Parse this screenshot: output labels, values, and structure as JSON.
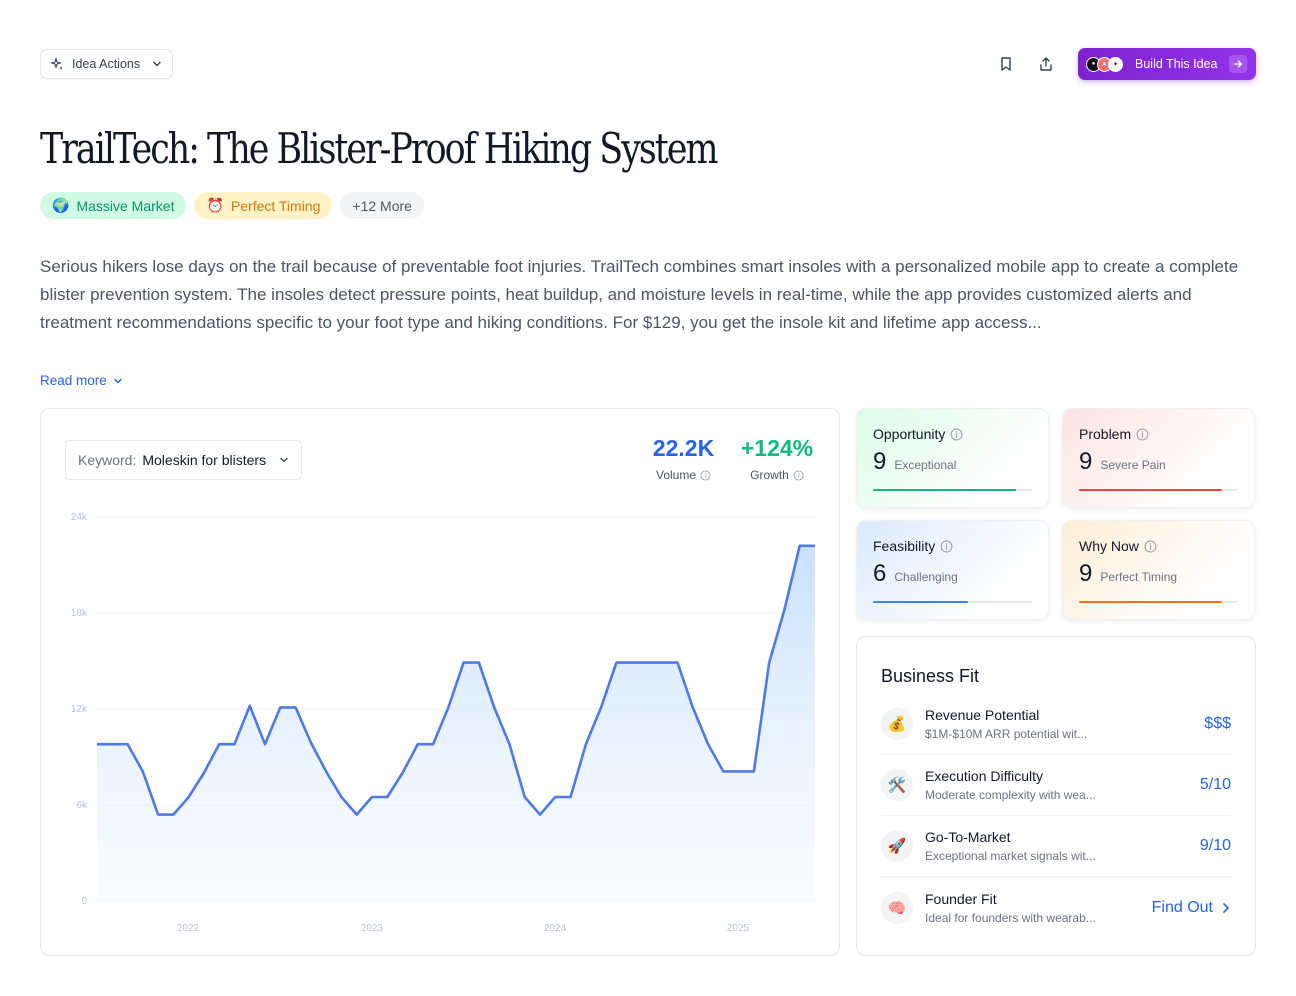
{
  "toolbar": {
    "idea_actions_label": "Idea Actions",
    "build_label": "Build This Idea"
  },
  "title": "TrailTech: The Blister-Proof Hiking System",
  "tags": [
    {
      "icon": "🌍",
      "label": "Massive Market",
      "color": "#059669"
    },
    {
      "icon": "⏰",
      "label": "Perfect Timing",
      "color": "#d97706"
    },
    {
      "label": "+12 More"
    }
  ],
  "description": "Serious hikers lose days on the trail because of preventable foot injuries. TrailTech combines smart insoles with a personalized mobile app to create a complete blister prevention system. The insoles detect pressure points, heat buildup, and moisture levels in real-time, while the app provides customized alerts and treatment recommendations specific to your foot type and hiking conditions. For $129, you get the insole kit and lifetime app access...",
  "read_more": "Read more",
  "keyword": {
    "label": "Keyword:",
    "value": "Moleskin for blisters"
  },
  "stats": {
    "volume": {
      "value": "22.2K",
      "label": "Volume",
      "color": "#2563eb"
    },
    "growth": {
      "value": "+124%",
      "label": "Growth",
      "color": "#10b981"
    }
  },
  "chart_data": {
    "type": "area",
    "y_ticks": [
      "24k",
      "18k",
      "12k",
      "6k",
      "0"
    ],
    "x_ticks": [
      "2022",
      "2023",
      "2024",
      "2025"
    ],
    "ylim": [
      0,
      24000
    ],
    "grid": true,
    "color": "#4f79e8",
    "values": [
      9800,
      9800,
      9800,
      8100,
      5400,
      5400,
      6500,
      8000,
      9800,
      9800,
      12200,
      9800,
      12100,
      12100,
      9900,
      8100,
      6500,
      5400,
      6500,
      6500,
      8000,
      9800,
      9800,
      12100,
      14900,
      14900,
      12100,
      9800,
      6500,
      5400,
      6500,
      6500,
      9800,
      12100,
      14900,
      14900,
      14900,
      14900,
      14900,
      12100,
      9800,
      8100,
      8100,
      8100,
      14900,
      18200,
      22200,
      22200
    ]
  },
  "scores": [
    {
      "name": "Opportunity",
      "value": "9",
      "desc": "Exceptional",
      "fraction": 0.9,
      "color": "#10b981"
    },
    {
      "name": "Problem",
      "value": "9",
      "desc": "Severe Pain",
      "fraction": 0.9,
      "color": "#ef4444"
    },
    {
      "name": "Feasibility",
      "value": "6",
      "desc": "Challenging",
      "fraction": 0.6,
      "color": "#3b82f6"
    },
    {
      "name": "Why Now",
      "value": "9",
      "desc": "Perfect Timing",
      "fraction": 0.9,
      "color": "#f97316"
    }
  ],
  "business_fit": {
    "title": "Business Fit",
    "items": [
      {
        "icon": "💰",
        "name": "Revenue Potential",
        "desc": "$1M-$10M ARR potential wit...",
        "value": "$$$"
      },
      {
        "icon": "🛠️",
        "name": "Execution Difficulty",
        "desc": "Moderate complexity with wea...",
        "value": "5/10"
      },
      {
        "icon": "🚀",
        "name": "Go-To-Market",
        "desc": "Exceptional market signals wit...",
        "value": "9/10"
      },
      {
        "icon": "🧠",
        "name": "Founder Fit",
        "desc": "Ideal for founders with wearab...",
        "value": "Find Out"
      }
    ]
  }
}
